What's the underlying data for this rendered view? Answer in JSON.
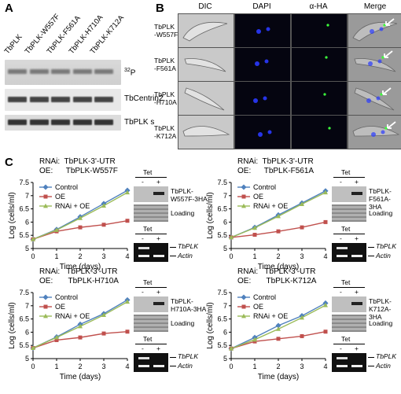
{
  "panelA": {
    "letter": "A",
    "lanes": [
      "TbPLK",
      "TbPLK-W557F",
      "TbPLK-F561A",
      "TbPLK-H710A",
      "TbPLK-K712A"
    ],
    "blots": [
      "32P",
      "TbCentrin2",
      "TbPLK s"
    ],
    "p32_sup": "32",
    "p32_base": "P"
  },
  "panelB": {
    "letter": "B",
    "columns": [
      "DIC",
      "DAPI",
      "α-HA",
      "Merge"
    ],
    "rows": [
      {
        "line1": "TbPLK",
        "line2": "-W557F"
      },
      {
        "line1": "TbPLK",
        "line2": "-F561A"
      },
      {
        "line1": "TbPLK",
        "line2": "-H710A"
      },
      {
        "line1": "TbPLK",
        "line2": "-K712A"
      }
    ]
  },
  "panelC": {
    "letter": "C",
    "legend": [
      "Control",
      "OE",
      "RNAi + OE"
    ],
    "colors": {
      "control": "#4f81bd",
      "oe": "#c0504d",
      "rnai": "#9bbb59"
    },
    "xlabel": "Time (days)",
    "ylabel": "Log (cells/ml)",
    "tet_label": "Tet",
    "minus": "-",
    "plus": "+",
    "loading": "Loading",
    "tbplk": "TbPLK",
    "actin": "Actin",
    "charts": [
      {
        "rnai": "RNAi:  TbPLK-3'-UTR",
        "oe": "OE:      TbPLK-W557F",
        "ha1": "TbPLK-",
        "ha2": "W557F-3HA"
      },
      {
        "rnai": "RNAi:  TbPLK-3'-UTR",
        "oe": "OE:      TbPLK-F561A",
        "ha1": "TbPLK-",
        "ha2": "F561A-3HA"
      },
      {
        "rnai": "RNAi:   TbPLK-3'-UTR",
        "oe": "OE:       TbPLK-H710A",
        "ha1": "TbPLK-",
        "ha2": "H710A-3HA"
      },
      {
        "rnai": "RNAi:   TbPLK-3'-UTR",
        "oe": "OE:       TbPLK-K712A",
        "ha1": "TbPLK-",
        "ha2": "K712A-3HA"
      }
    ]
  },
  "chart_data": [
    {
      "type": "line",
      "x": [
        0,
        1,
        2,
        3,
        4
      ],
      "ylim": [
        5,
        7.5
      ],
      "xlim": [
        0,
        4
      ],
      "yticks": [
        "5",
        "5.5",
        "6",
        "6.5",
        "7",
        "7.5"
      ],
      "xticks": [
        "0",
        "1",
        "2",
        "3",
        "4"
      ],
      "xlabel": "Time (days)",
      "ylabel": "Log (cells/ml)",
      "legend": "top-left",
      "series": [
        {
          "name": "Control",
          "values": [
            5.35,
            5.72,
            6.2,
            6.7,
            7.2
          ]
        },
        {
          "name": "OE",
          "values": [
            5.35,
            5.65,
            5.8,
            5.9,
            6.05
          ]
        },
        {
          "name": "RNAi + OE",
          "values": [
            5.35,
            5.7,
            6.15,
            6.62,
            7.12
          ]
        }
      ]
    },
    {
      "type": "line",
      "x": [
        0,
        1,
        2,
        3,
        4
      ],
      "ylim": [
        5,
        7.5
      ],
      "xlim": [
        0,
        4
      ],
      "yticks": [
        "5",
        "5.5",
        "6",
        "6.5",
        "7",
        "7.5"
      ],
      "xticks": [
        "0",
        "1",
        "2",
        "3",
        "4"
      ],
      "xlabel": "Time (days)",
      "ylabel": "Log (cells/ml)",
      "legend": "top-left",
      "series": [
        {
          "name": "Control",
          "values": [
            5.42,
            5.8,
            6.27,
            6.72,
            7.18
          ]
        },
        {
          "name": "OE",
          "values": [
            5.42,
            5.52,
            5.65,
            5.8,
            6.0
          ]
        },
        {
          "name": "RNAi + OE",
          "values": [
            5.42,
            5.78,
            6.22,
            6.68,
            7.12
          ]
        }
      ]
    },
    {
      "type": "line",
      "x": [
        0,
        1,
        2,
        3,
        4
      ],
      "ylim": [
        5,
        7.5
      ],
      "xlim": [
        0,
        4
      ],
      "yticks": [
        "5",
        "5.5",
        "6",
        "6.5",
        "7",
        "7.5"
      ],
      "xticks": [
        "0",
        "1",
        "2",
        "3",
        "4"
      ],
      "xlabel": "Time (days)",
      "ylabel": "Log (cells/ml)",
      "legend": "top-left",
      "series": [
        {
          "name": "Control",
          "values": [
            5.4,
            5.82,
            6.3,
            6.7,
            7.22
          ]
        },
        {
          "name": "OE",
          "values": [
            5.4,
            5.7,
            5.8,
            5.95,
            6.02
          ]
        },
        {
          "name": "RNAi + OE",
          "values": [
            5.4,
            5.8,
            6.22,
            6.65,
            7.15
          ]
        }
      ]
    },
    {
      "type": "line",
      "x": [
        0,
        1,
        2,
        3,
        4
      ],
      "ylim": [
        5,
        7.5
      ],
      "xlim": [
        0,
        4
      ],
      "yticks": [
        "5",
        "5.5",
        "6",
        "6.5",
        "7",
        "7.5"
      ],
      "xticks": [
        "0",
        "1",
        "2",
        "3",
        "4"
      ],
      "xlabel": "Time (days)",
      "ylabel": "Log (cells/ml)",
      "legend": "top-left",
      "series": [
        {
          "name": "Control",
          "values": [
            5.38,
            5.8,
            6.25,
            6.62,
            7.1
          ]
        },
        {
          "name": "OE",
          "values": [
            5.38,
            5.65,
            5.75,
            5.85,
            6.02
          ]
        },
        {
          "name": "RNAi + OE",
          "values": [
            5.38,
            5.72,
            6.12,
            6.55,
            7.02
          ]
        }
      ]
    }
  ]
}
